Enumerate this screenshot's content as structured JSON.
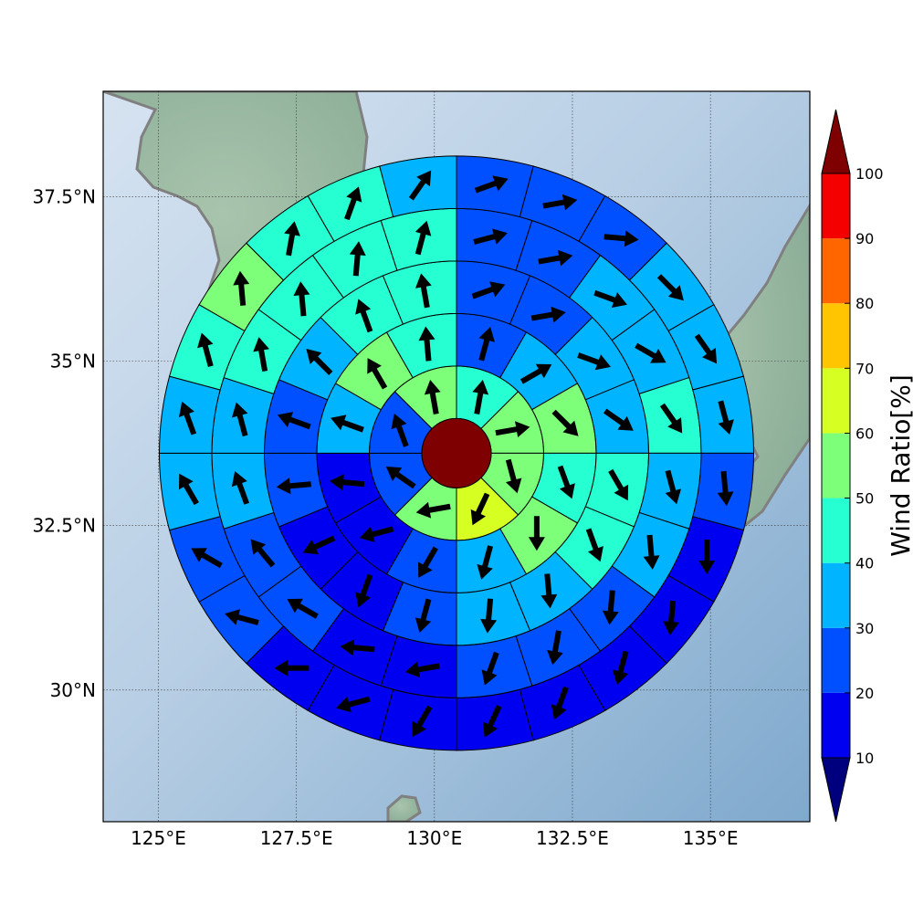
{
  "map": {
    "lon_ticks": [
      "125°E",
      "127.5°E",
      "130°E",
      "132.5°E",
      "135°E"
    ],
    "lat_ticks": [
      "37.5°N",
      "35°N",
      "32.5°N",
      "30°N"
    ],
    "extent_lon": [
      124.0,
      136.8
    ],
    "extent_lat": [
      28.0,
      39.1
    ],
    "center_lon": 130.4,
    "center_lat": 33.6
  },
  "colorbar": {
    "label": "Wind Ratio[%]",
    "ticks": [
      "10",
      "20",
      "30",
      "40",
      "50",
      "60",
      "70",
      "80",
      "90",
      "100"
    ],
    "levels": [
      10,
      20,
      30,
      40,
      50,
      60,
      70,
      80,
      90,
      100
    ],
    "colors": [
      "#0000f0",
      "#0050ff",
      "#00b4ff",
      "#26ffd2",
      "#7dff7a",
      "#d6ff22",
      "#ffc500",
      "#ff6600",
      "#f50000"
    ],
    "under_color": "#00007f",
    "over_color": "#7f0000"
  },
  "polar_grid": {
    "center_value": 100,
    "center_color": "#7f0000",
    "rings": [
      {
        "sectors": 8,
        "values": [
          46,
          55,
          55,
          67,
          55,
          27,
          27,
          55
        ],
        "dirs": [
          10,
          80,
          165,
          205,
          260,
          305,
          340,
          350
        ]
      },
      {
        "sectors": 12,
        "values": [
          24,
          35,
          52,
          48,
          58,
          35,
          26,
          18,
          18,
          35,
          58,
          42
        ],
        "dirs": [
          15,
          60,
          135,
          160,
          180,
          195,
          210,
          255,
          275,
          290,
          330,
          355
        ]
      },
      {
        "sectors": 16,
        "values": [
          25,
          25,
          38,
          38,
          45,
          45,
          38,
          32,
          22,
          18,
          15,
          22,
          25,
          30,
          45,
          42
        ],
        "dirs": [
          70,
          80,
          110,
          125,
          150,
          160,
          175,
          185,
          195,
          200,
          245,
          265,
          290,
          315,
          340,
          350
        ]
      },
      {
        "sectors": 20,
        "values": [
          22,
          22,
          32,
          38,
          42,
          38,
          35,
          22,
          25,
          22,
          14,
          14,
          22,
          22,
          32,
          32,
          42,
          42,
          45,
          45
        ],
        "dirs": [
          75,
          80,
          110,
          120,
          145,
          165,
          175,
          185,
          190,
          200,
          260,
          275,
          300,
          320,
          340,
          345,
          350,
          355,
          5,
          15
        ]
      },
      {
        "sectors": 24,
        "values": [
          22,
          22,
          22,
          35,
          35,
          35,
          22,
          18,
          14,
          14,
          14,
          16,
          16,
          14,
          16,
          22,
          28,
          35,
          38,
          45,
          55,
          42,
          42,
          38
        ],
        "dirs": [
          70,
          80,
          95,
          135,
          145,
          165,
          175,
          180,
          185,
          195,
          200,
          205,
          210,
          255,
          270,
          285,
          300,
          330,
          340,
          345,
          355,
          10,
          20,
          35
        ]
      }
    ]
  }
}
